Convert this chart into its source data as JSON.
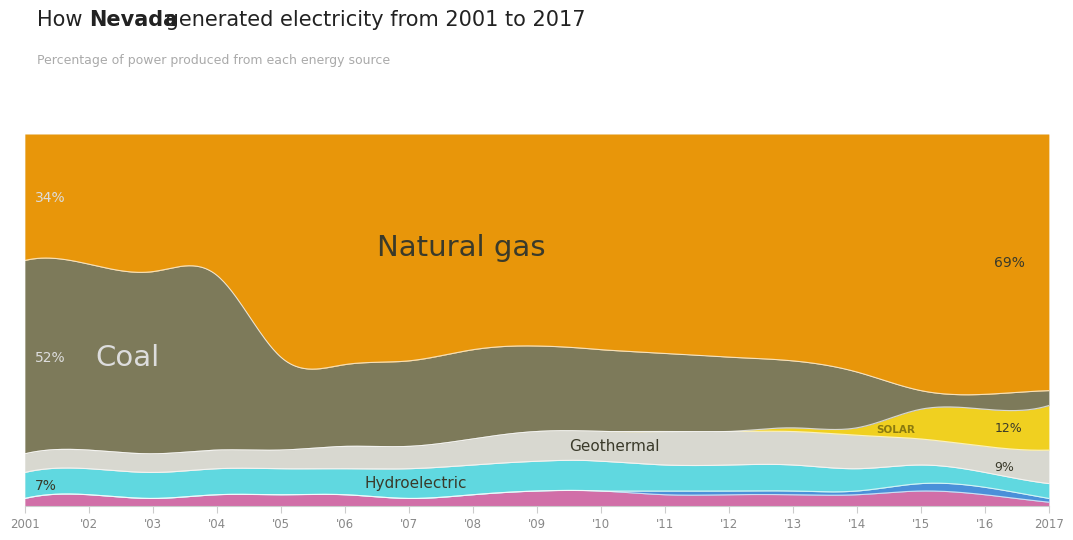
{
  "years": [
    2001,
    2002,
    2003,
    2004,
    2005,
    2006,
    2007,
    2008,
    2009,
    2010,
    2011,
    2012,
    2013,
    2014,
    2015,
    2016,
    2017
  ],
  "colors": {
    "Other": "#d16fa8",
    "Wind": "#4a90d9",
    "Solar": "#f0d020",
    "Geothermal": "#d8d8d0",
    "Hydroelectric": "#60d8e0",
    "Coal": "#7d7a5a",
    "Natural gas": "#e8960a"
  },
  "data": {
    "Other": [
      2,
      3,
      2,
      3,
      3,
      3,
      2,
      3,
      4,
      4,
      3,
      3,
      3,
      3,
      4,
      3,
      1
    ],
    "Wind": [
      0,
      0,
      0,
      0,
      0,
      0,
      0,
      0,
      0,
      0,
      1,
      1,
      1,
      1,
      2,
      2,
      1
    ],
    "Hydroelectric": [
      7,
      7,
      7,
      7,
      7,
      7,
      8,
      8,
      8,
      8,
      7,
      7,
      7,
      6,
      5,
      4,
      4
    ],
    "Geothermal": [
      5,
      5,
      5,
      5,
      5,
      6,
      6,
      7,
      8,
      8,
      9,
      9,
      9,
      9,
      7,
      7,
      9
    ],
    "Solar": [
      0,
      0,
      0,
      0,
      0,
      0,
      0,
      0,
      0,
      0,
      0,
      0,
      1,
      2,
      8,
      10,
      12
    ],
    "Coal": [
      52,
      50,
      49,
      47,
      25,
      22,
      23,
      24,
      23,
      22,
      21,
      20,
      18,
      15,
      5,
      4,
      4
    ],
    "Natural gas": [
      34,
      35,
      37,
      38,
      60,
      62,
      61,
      58,
      57,
      58,
      59,
      60,
      61,
      64,
      69,
      70,
      69
    ]
  },
  "bg_color": "#ffffff",
  "chart_bg": "#f5f5f2"
}
